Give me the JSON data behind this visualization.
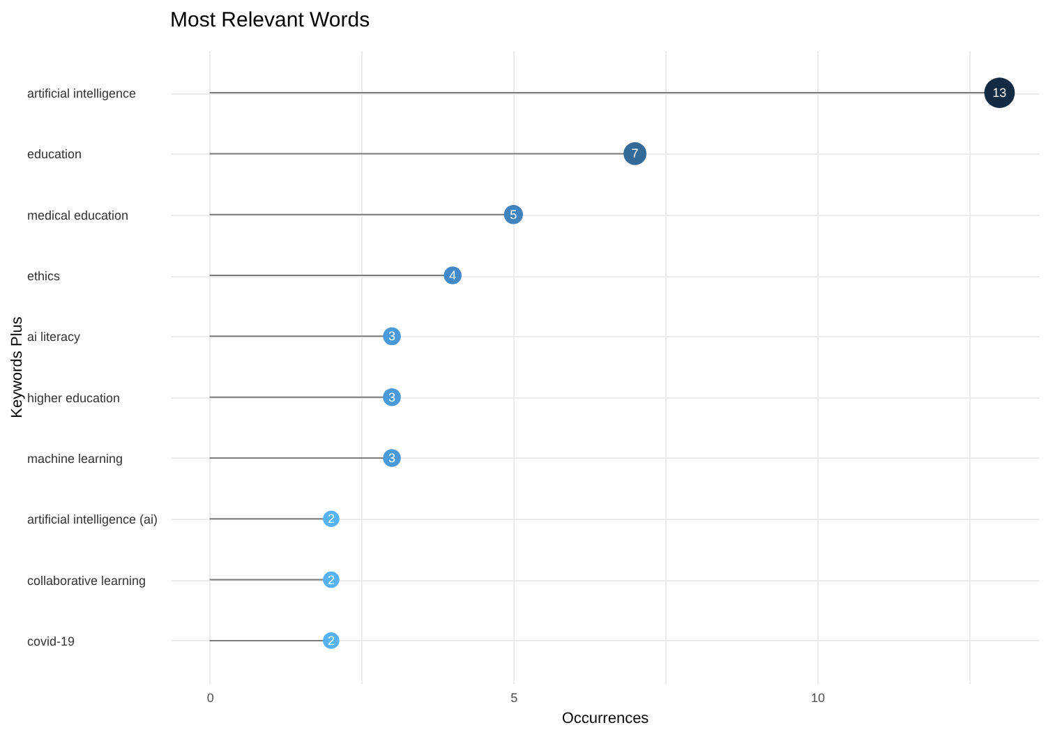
{
  "chart_data": {
    "type": "lollipop",
    "title": "Most Relevant Words",
    "xlabel": "Occurrences",
    "ylabel": "Keywords Plus",
    "orientation": "horizontal",
    "categories": [
      "artificial intelligence",
      "education",
      "medical education",
      "ethics",
      "ai literacy",
      "higher education",
      "machine learning",
      "artificial intelligence (ai)",
      "collaborative learning",
      "covid-19"
    ],
    "values": [
      13,
      7,
      5,
      4,
      3,
      3,
      3,
      2,
      2,
      2
    ],
    "sizes": [
      1,
      0.56,
      0.39,
      0.34,
      0.34,
      0.34,
      0.34,
      0.29,
      0.29,
      0.29
    ],
    "colors": [
      "#132b43",
      "#336a98",
      "#3f83bf",
      "#4289c9",
      "#4a9ad9",
      "#4a9ad9",
      "#4a9ad9",
      "#56b1f7",
      "#56b1f7",
      "#56b1f7"
    ],
    "xlim": [
      -0.65,
      13.65
    ],
    "xticks": [
      0,
      {
        "value": 2.5,
        "label": null
      },
      5,
      {
        "value": 7.5,
        "label": null
      },
      10,
      {
        "value": 12.5,
        "label": null
      }
    ],
    "grid": true,
    "data_labels": true
  }
}
